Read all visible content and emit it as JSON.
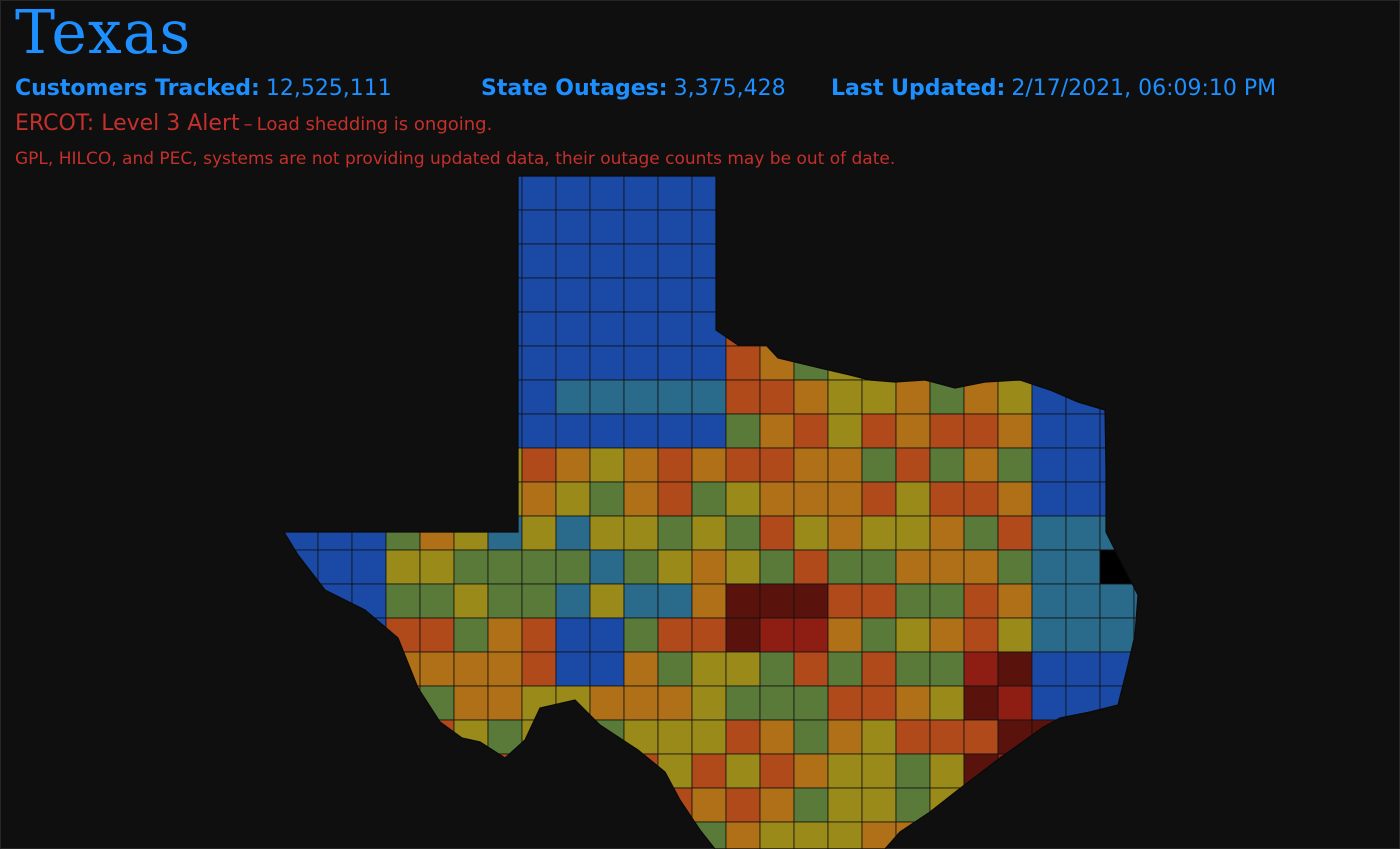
{
  "header": {
    "title": "Texas",
    "customers_label": "Customers Tracked:",
    "customers_value": "12,525,111",
    "outages_label": "State Outages:",
    "outages_value": "3,375,428",
    "updated_label": "Last Updated:",
    "updated_value": "2/17/2021, 06:09:10 PM"
  },
  "alert": {
    "level": "ERCOT: Level 3 Alert",
    "separator": "–",
    "detail": "Load shedding is ongoing."
  },
  "warning": "GPL, HILCO, and PEC, systems are not providing updated data, their outage counts may be out of date.",
  "map": {
    "legend_scale": [
      "#1a4aa6",
      "#2a6a8a",
      "#5a7a3a",
      "#9a8a1a",
      "#b07018",
      "#b04a1a",
      "#8e1e14",
      "#5a120c"
    ],
    "no_data_color": "#000000",
    "boundary_color": "#111111"
  }
}
